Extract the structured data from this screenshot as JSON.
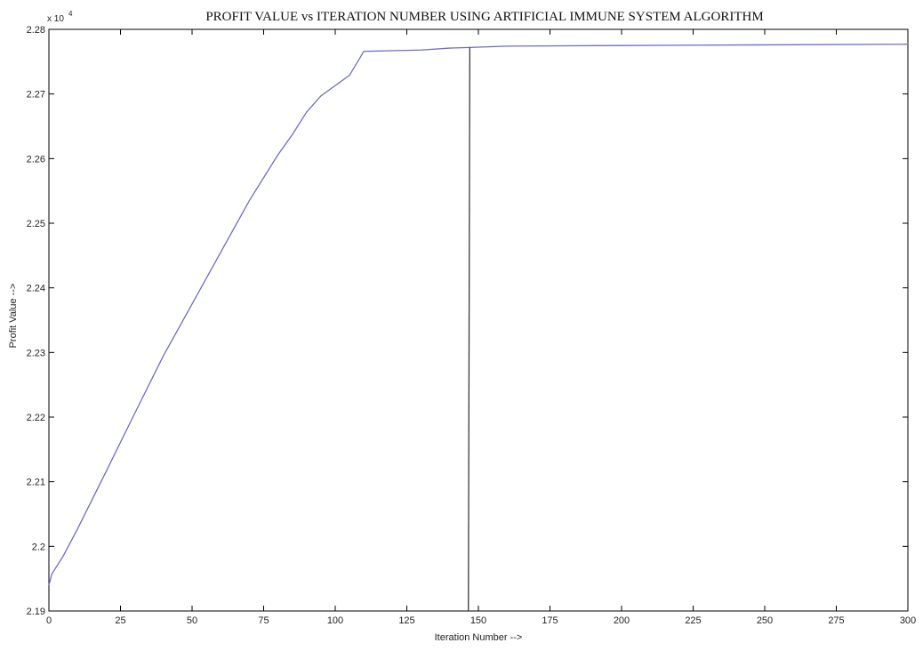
{
  "chart_data": {
    "type": "line",
    "title": "PROFIT VALUE vs ITERATION NUMBER USING ARTIFICIAL IMMUNE SYSTEM ALGORITHM",
    "xlabel": "Iteration Number -->",
    "ylabel": "Profit Value -->",
    "y_multiplier_base": "x 10",
    "y_multiplier_exp": "4",
    "xlim": [
      0,
      300
    ],
    "ylim": [
      2.19,
      2.28
    ],
    "x_ticks": [
      0,
      25,
      50,
      75,
      100,
      125,
      150,
      175,
      200,
      225,
      250,
      275,
      300
    ],
    "y_ticks": [
      2.19,
      2.2,
      2.21,
      2.22,
      2.23,
      2.24,
      2.25,
      2.26,
      2.27,
      2.28
    ],
    "x_tick_labels": [
      "0",
      "25",
      "50",
      "75",
      "100",
      "125",
      "150",
      "175",
      "200",
      "225",
      "250",
      "275",
      "300"
    ],
    "y_tick_labels": [
      "2.19",
      "2.2",
      "2.21",
      "2.22",
      "2.23",
      "2.24",
      "2.25",
      "2.26",
      "2.27",
      "2.28"
    ],
    "grid": false,
    "series": [
      {
        "color": "#6b6bd6",
        "x": [
          0,
          1,
          5,
          10,
          20,
          30,
          40,
          50,
          60,
          70,
          80,
          85,
          90,
          95,
          100,
          105,
          110,
          120,
          130,
          140,
          147,
          160,
          200,
          250,
          300
        ],
        "y": [
          2.194,
          2.1957,
          2.1985,
          2.2027,
          2.2116,
          2.2206,
          2.2295,
          2.2375,
          2.2455,
          2.2535,
          2.2606,
          2.2637,
          2.2672,
          2.2697,
          2.2713,
          2.2729,
          2.2766,
          2.2767,
          2.2768,
          2.2771,
          2.2772,
          2.2774,
          2.2775,
          2.2776,
          2.2777
        ]
      },
      {
        "color": "#3a3a3a",
        "x": [
          146.5,
          147
        ],
        "y": [
          2.19,
          2.2772
        ]
      }
    ]
  }
}
